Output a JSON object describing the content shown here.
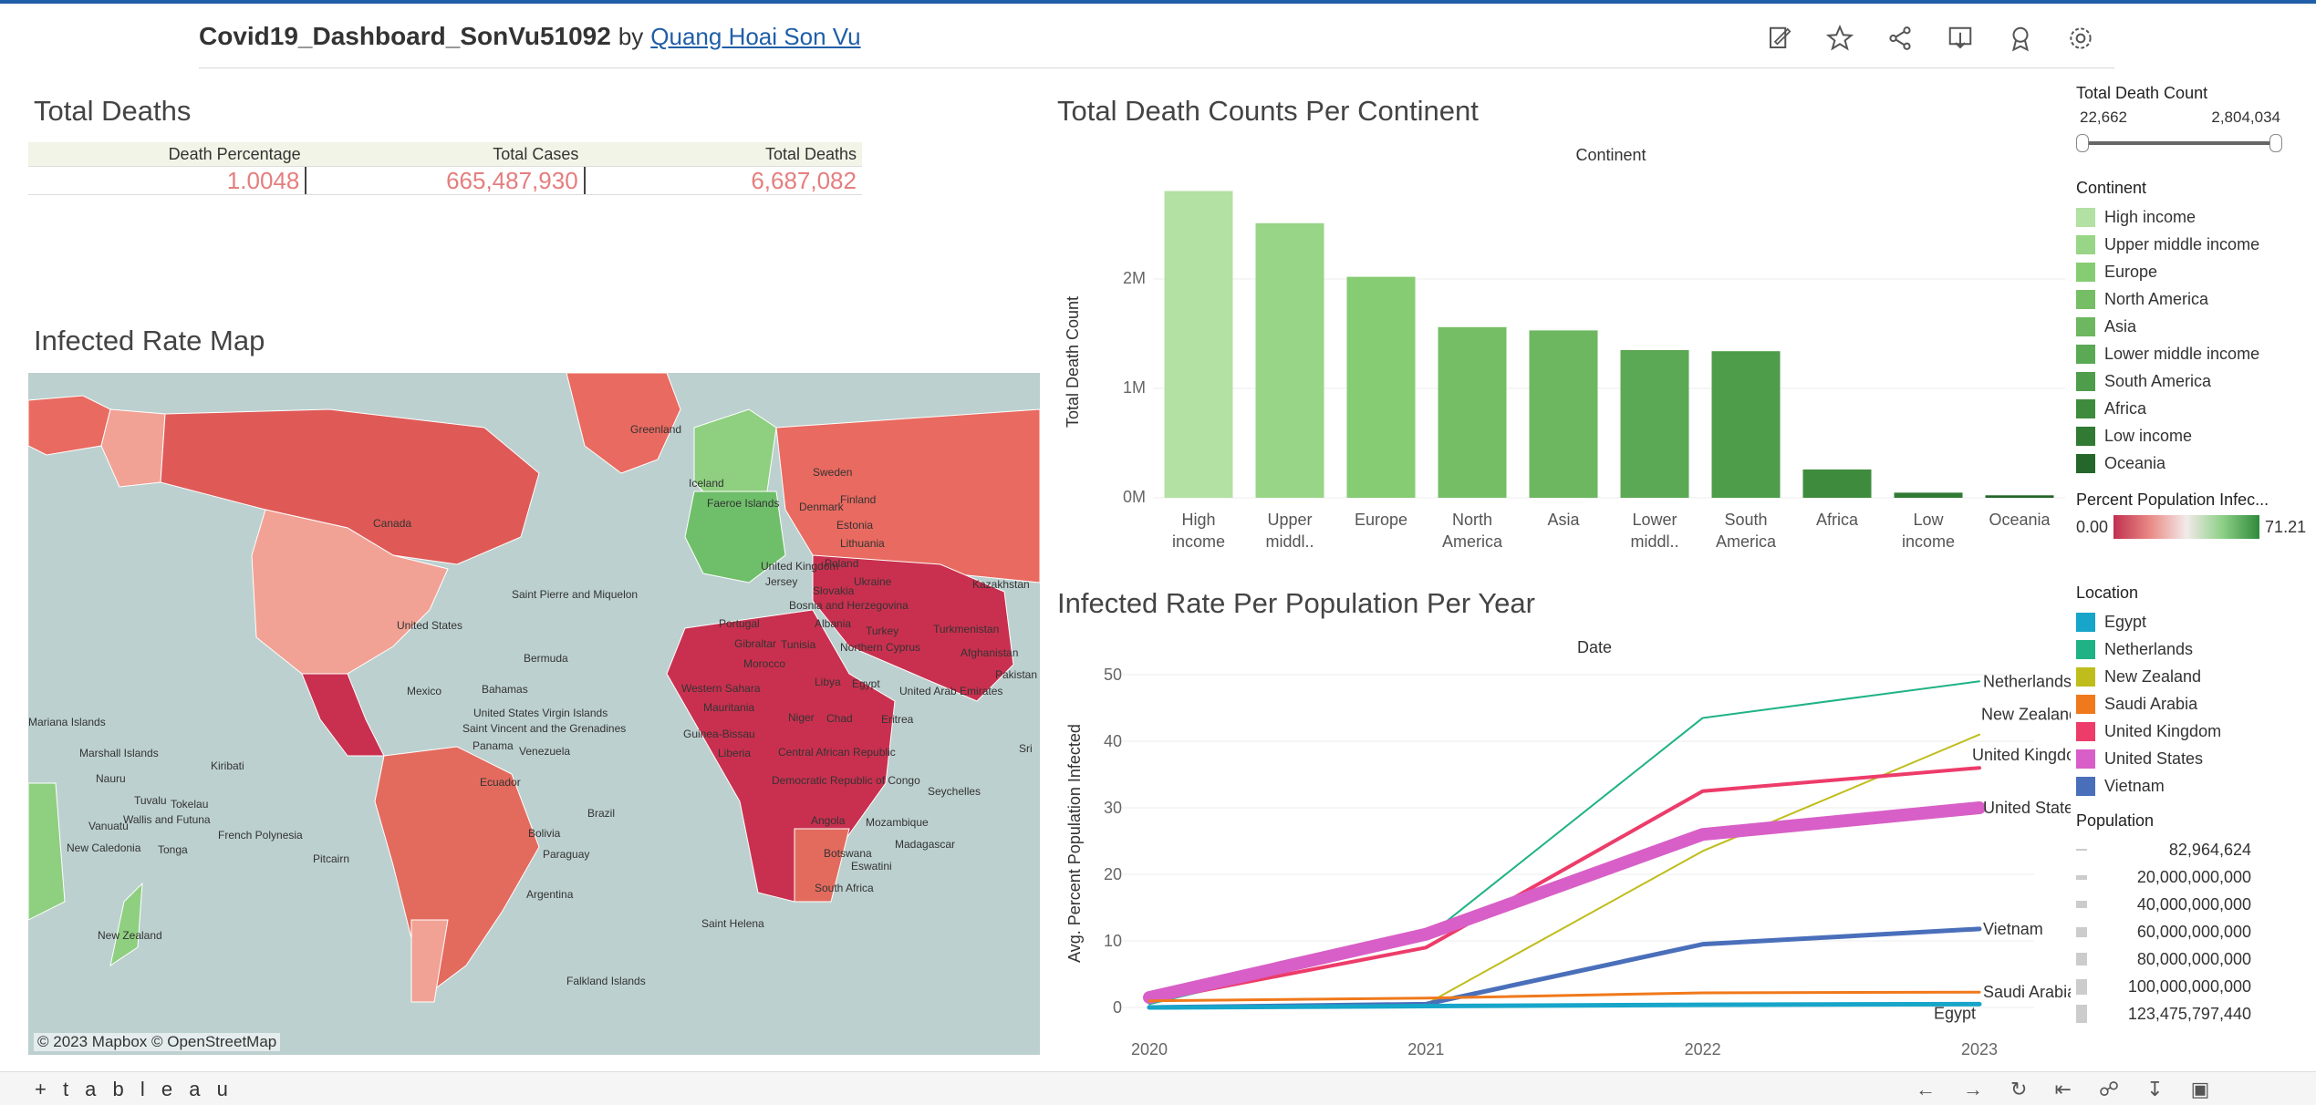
{
  "header": {
    "title": "Covid19_Dashboard_SonVu51092",
    "by": "by",
    "author": "Quang Hoai Son Vu"
  },
  "total_deaths": {
    "title": "Total Deaths",
    "headers": [
      "Death Percentage",
      "Total Cases",
      "Total Deaths"
    ],
    "values": [
      "1.0048",
      "665,487,930",
      "6,687,082"
    ]
  },
  "map": {
    "title": "Infected Rate Map",
    "credit": "© 2023 Mapbox  © OpenStreetMap",
    "labels": [
      "Greenland",
      "Iceland",
      "Sweden",
      "Finland",
      "Faeroe Islands",
      "Denmark",
      "Estonia",
      "Lithuania",
      "Canada",
      "United Kingdom",
      "Poland",
      "Ukraine",
      "Jersey",
      "Slovakia",
      "Kazakhstan",
      "Saint Pierre and Miquelon",
      "Bosnia and Herzegovina",
      "Portugal",
      "Albania",
      "Turkey",
      "Turkmenistan",
      "United States",
      "Gibraltar",
      "Tunisia",
      "Northern Cyprus",
      "Afghanistan",
      "Bermuda",
      "Morocco",
      "Libya",
      "Egypt",
      "Pakistan",
      "Mexico",
      "Bahamas",
      "Western Sahara",
      "United Arab Emirates",
      "United States Virgin Islands",
      "Mauritania",
      "Niger",
      "Chad",
      "Eritrea",
      "Saint Vincent and the Grenadines",
      "Guinea-Bissau",
      "Panama",
      "Venezuela",
      "Liberia",
      "Central African Republic",
      "Mariana Islands",
      "Marshall Islands",
      "Kiribati",
      "Ecuador",
      "Democratic Republic of Congo",
      "Seychelles",
      "Nauru",
      "Tuvalu",
      "Tokelau",
      "Brazil",
      "Angola",
      "Mozambique",
      "Vanuatu",
      "Wallis and Futuna",
      "French Polynesia",
      "Bolivia",
      "Madagascar",
      "New Caledonia",
      "Tonga",
      "Paraguay",
      "Botswana",
      "Eswatini",
      "Pitcairn",
      "South Africa",
      "Argentina",
      "New Zealand",
      "Saint Helena",
      "Falkland Islands",
      "Sri"
    ]
  },
  "continent_chart": {
    "title": "Total Death Counts Per Continent",
    "header": "Continent",
    "ylabel": "Total Death Count",
    "yticks": [
      "0M",
      "1M",
      "2M"
    ]
  },
  "rate_chart": {
    "title": "Infected Rate Per Population Per Year",
    "header": "Date",
    "ylabel": "Avg. Percent Population Infected",
    "yticks": [
      "0",
      "10",
      "20",
      "30",
      "40",
      "50"
    ],
    "xticks": [
      "2020",
      "2021",
      "2022",
      "2023"
    ]
  },
  "legends": {
    "death_count": {
      "title": "Total Death Count",
      "min": "22,662",
      "max": "2,804,034"
    },
    "continent": {
      "title": "Continent",
      "items": [
        "High income",
        "Upper middle income",
        "Europe",
        "North America",
        "Asia",
        "Lower middle income",
        "South America",
        "Africa",
        "Low income",
        "Oceania"
      ],
      "colors": [
        "#b3e0a3",
        "#98d586",
        "#86cc73",
        "#76be66",
        "#6cb75f",
        "#5ba855",
        "#4d9d4b",
        "#3e8b3e",
        "#317a34",
        "#25662a"
      ]
    },
    "percent": {
      "title": "Percent Population Infec...",
      "min": "0.00",
      "max": "71.21"
    },
    "location": {
      "title": "Location",
      "items": [
        "Egypt",
        "Netherlands",
        "New Zealand",
        "Saudi Arabia",
        "United Kingdom",
        "United States",
        "Vietnam"
      ],
      "colors": [
        "#17a5c9",
        "#1fb285",
        "#bfbd1b",
        "#f0791b",
        "#ed3c6a",
        "#d85fc7",
        "#4a6fba"
      ]
    },
    "population": {
      "title": "Population",
      "items": [
        "82,964,624",
        "20,000,000,000",
        "40,000,000,000",
        "60,000,000,000",
        "80,000,000,000",
        "100,000,000,000",
        "123,475,797,440"
      ]
    }
  },
  "footer": {
    "logo": "+ t a b l e a u"
  },
  "chart_data": [
    {
      "type": "bar",
      "title": "Total Death Counts Per Continent",
      "xlabel": "Continent",
      "ylabel": "Total Death Count",
      "categories": [
        "High income",
        "Upper middl..",
        "Europe",
        "North America",
        "Asia",
        "Lower middl..",
        "South America",
        "Africa",
        "Low income",
        "Oceania"
      ],
      "values": [
        2804034,
        2510000,
        2020000,
        1560000,
        1530000,
        1350000,
        1340000,
        259000,
        47000,
        22662
      ],
      "colors": [
        "#b3e0a3",
        "#98d586",
        "#86cc73",
        "#76be66",
        "#6cb75f",
        "#5ba855",
        "#4d9d4b",
        "#3e8b3e",
        "#317a34",
        "#25662a"
      ],
      "ylim": [
        0,
        2900000
      ]
    },
    {
      "type": "line",
      "title": "Infected Rate Per Population Per Year",
      "xlabel": "Date",
      "ylabel": "Avg. Percent Population Infected",
      "x": [
        2020,
        2021,
        2022,
        2023
      ],
      "ylim": [
        0,
        50
      ],
      "series": [
        {
          "name": "Netherlands",
          "color": "#1fb285",
          "values": [
            0.5,
            10.5,
            43.5,
            49.0
          ],
          "width": 2
        },
        {
          "name": "New Zealand",
          "color": "#bfbd1b",
          "values": [
            0.0,
            0.5,
            23.5,
            41.0
          ],
          "width": 2
        },
        {
          "name": "United Kingdom",
          "color": "#ed3c6a",
          "values": [
            1.0,
            9.0,
            32.5,
            36.0
          ],
          "width": 4
        },
        {
          "name": "United States",
          "color": "#d85fc7",
          "values": [
            1.5,
            11.0,
            26.0,
            30.0
          ],
          "width": 14
        },
        {
          "name": "Vietnam",
          "color": "#4a6fba",
          "values": [
            0.0,
            0.5,
            9.5,
            11.8
          ],
          "width": 5
        },
        {
          "name": "Saudi Arabia",
          "color": "#f0791b",
          "values": [
            1.0,
            1.4,
            2.2,
            2.3
          ],
          "width": 3
        },
        {
          "name": "Egypt",
          "color": "#17a5c9",
          "values": [
            0.0,
            0.2,
            0.4,
            0.5
          ],
          "width": 5
        }
      ]
    }
  ]
}
